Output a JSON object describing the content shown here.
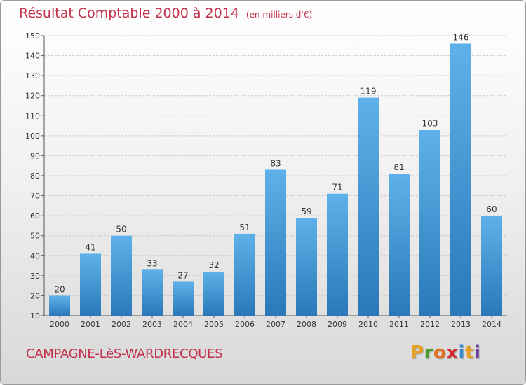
{
  "header": {
    "title": "Résultat Comptable 2000 à 2014",
    "unit": "(en milliers d'€)"
  },
  "footer": {
    "town": "CAMPAGNE-LèS-WARDRECQUES",
    "logo_letters": [
      "P",
      "r",
      "o",
      "x",
      "i",
      "t",
      "i"
    ]
  },
  "colors": {
    "title": "#c2304a",
    "bar_top": "#5fb1ea",
    "bar_bottom": "#2a78b8",
    "logo": [
      "#e8a020",
      "#4a9a2a",
      "#e07020",
      "#d02a30",
      "#3a8ad0",
      "#e8a020",
      "#6a3aa0"
    ]
  },
  "chart_data": {
    "type": "bar",
    "title": "Résultat Comptable 2000 à 2014",
    "categories": [
      "2000",
      "2001",
      "2002",
      "2003",
      "2004",
      "2005",
      "2006",
      "2007",
      "2008",
      "2009",
      "2010",
      "2011",
      "2012",
      "2013",
      "2014"
    ],
    "values": [
      20,
      41,
      50,
      33,
      27,
      32,
      51,
      83,
      59,
      71,
      119,
      81,
      103,
      146,
      60
    ],
    "ylim": [
      10,
      150
    ],
    "yticks": [
      10,
      20,
      30,
      40,
      50,
      60,
      70,
      80,
      90,
      100,
      110,
      120,
      130,
      140,
      150
    ],
    "grid": true
  }
}
